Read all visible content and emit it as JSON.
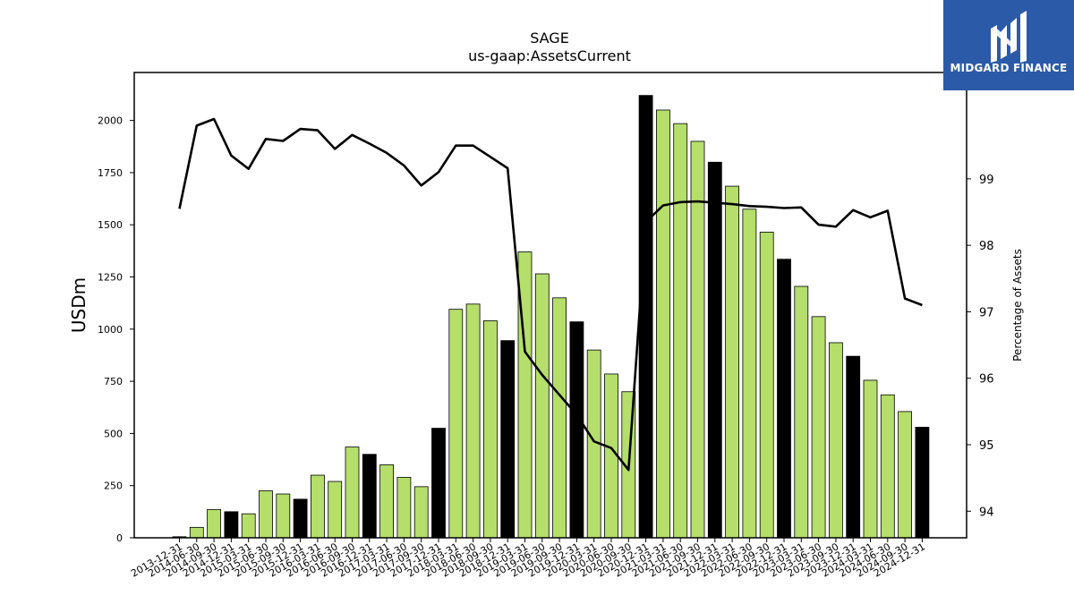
{
  "header": {
    "ticker": "SAGE",
    "concept": "us-gaap:AssetsCurrent"
  },
  "brand": {
    "name": "MIDGARD FINANCE",
    "color": "#2b5aa8"
  },
  "colors": {
    "bar_regular": "#b5de6b",
    "bar_highlight": "#000000",
    "line": "#000000"
  },
  "chart_data": {
    "type": "bar",
    "title": "SAGE",
    "subtitle": "us-gaap:AssetsCurrent",
    "ylabel": "USDm",
    "y2label": "Percentage of Assets",
    "ylim": [
      0,
      2230
    ],
    "y2lim": [
      93.6,
      100.6
    ],
    "yticks": [
      0,
      250,
      500,
      750,
      1000,
      1250,
      1500,
      1750,
      2000
    ],
    "y2ticks": [
      94,
      95,
      96,
      97,
      98,
      99
    ],
    "categories": [
      "2013-12-31",
      "2014-06-30",
      "2014-09-30",
      "2014-12-31",
      "2015-03-31",
      "2015-06-30",
      "2015-09-30",
      "2015-12-31",
      "2016-03-31",
      "2016-06-30",
      "2016-09-30",
      "2016-12-31",
      "2017-03-31",
      "2017-06-30",
      "2017-09-30",
      "2017-12-31",
      "2018-03-31",
      "2018-06-30",
      "2018-09-30",
      "2018-12-31",
      "2019-03-31",
      "2019-06-30",
      "2019-09-30",
      "2019-12-31",
      "2020-03-31",
      "2020-06-30",
      "2020-09-30",
      "2020-12-31",
      "2021-03-31",
      "2021-06-30",
      "2021-09-30",
      "2021-12-31",
      "2022-03-31",
      "2022-06-30",
      "2022-09-30",
      "2022-12-31",
      "2023-03-31",
      "2023-06-30",
      "2023-09-30",
      "2023-12-31",
      "2024-03-31",
      "2024-06-30",
      "2024-09-30",
      "2024-12-31"
    ],
    "series": [
      {
        "type": "bar",
        "values": [
          5,
          50,
          135,
          125,
          115,
          225,
          210,
          185,
          300,
          270,
          435,
          400,
          350,
          290,
          245,
          525,
          1095,
          1120,
          1040,
          945,
          1370,
          1265,
          1150,
          1035,
          900,
          785,
          700,
          2120,
          2050,
          1985,
          1900,
          1800,
          1685,
          1575,
          1465,
          1335,
          1205,
          1060,
          935,
          870,
          755,
          685,
          605,
          530
        ],
        "highlight": [
          true,
          false,
          false,
          true,
          false,
          false,
          false,
          true,
          false,
          false,
          false,
          true,
          false,
          false,
          false,
          true,
          false,
          false,
          false,
          true,
          false,
          false,
          false,
          true,
          false,
          false,
          false,
          true,
          false,
          false,
          false,
          true,
          false,
          false,
          false,
          true,
          false,
          false,
          false,
          true,
          false,
          false,
          false,
          true
        ]
      },
      {
        "type": "line",
        "axis": "right",
        "values": [
          98.55,
          99.8,
          99.9,
          99.35,
          99.15,
          99.6,
          99.57,
          99.75,
          99.73,
          99.45,
          99.66,
          99.53,
          99.39,
          99.2,
          98.9,
          99.1,
          99.5,
          99.5,
          99.33,
          99.16,
          96.4,
          96.05,
          95.75,
          95.45,
          95.05,
          94.95,
          94.62,
          98.35,
          98.6,
          98.65,
          98.66,
          98.64,
          98.62,
          98.59,
          98.58,
          98.56,
          98.57,
          98.31,
          98.28,
          98.53,
          98.42,
          98.52,
          97.2,
          97.1
        ]
      }
    ]
  }
}
